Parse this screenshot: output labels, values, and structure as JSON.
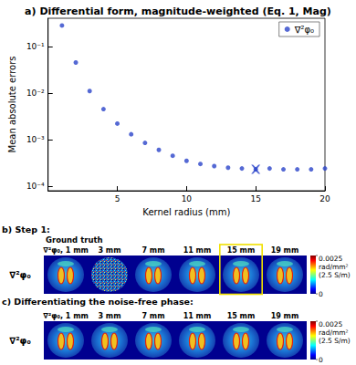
{
  "chart_data": {
    "type": "scatter",
    "title": "a) Differential form, magnitude-weighted (Eq. 1, Mag)",
    "x_label": "Kernel radius (mm)",
    "y_label": "Mean absolute errors",
    "x": [
      1,
      2,
      3,
      4,
      5,
      6,
      7,
      8,
      9,
      10,
      11,
      12,
      13,
      14,
      15,
      16,
      17,
      18,
      19,
      20
    ],
    "series": [
      {
        "name": "∇²φ₀",
        "color": "#2a44c9",
        "marker": "circle",
        "values": [
          0.28,
          0.045,
          0.011,
          0.0045,
          0.0022,
          0.0013,
          0.00085,
          0.0006,
          0.00045,
          0.00035,
          0.0003,
          0.00027,
          0.00025,
          0.00024,
          0.00023,
          0.00024,
          0.00023,
          0.00023,
          0.00023,
          0.00024
        ]
      }
    ],
    "selected": {
      "x": 15,
      "value": 0.00023,
      "marker": "x"
    },
    "xlim": [
      0,
      20
    ],
    "xticks": [
      5,
      10,
      15,
      20
    ],
    "ylim": [
      8e-05,
      0.4
    ],
    "yticks": [
      {
        "value": 0.0001,
        "label": "10⁻⁴"
      },
      {
        "value": 0.001,
        "label": "10⁻³"
      },
      {
        "value": 0.01,
        "label": "10⁻²"
      },
      {
        "value": 0.1,
        "label": "10⁻¹"
      }
    ],
    "log": "y",
    "grid": false,
    "legend": "upper right"
  },
  "panels": [
    {
      "title": "b) Step 1:",
      "note": "Ground truth",
      "row_label": "∇²φ₀",
      "columns": [
        "∇²φ₀, 1 mm",
        "3 mm",
        "7 mm",
        "11 mm",
        "15 mm",
        "19 mm"
      ],
      "highlight": "15 mm",
      "colorbar": {
        "range": [
          0,
          0.0025
        ],
        "ticks": [
          0,
          0.0025
        ],
        "units": "rad/mm²",
        "note": "(2.5 S/m)"
      }
    },
    {
      "title": "c) Differentiating the noise-free phase:",
      "row_label": "∇²φ₀",
      "columns": [
        "∇²φ₀, 1 mm",
        "3 mm",
        "7 mm",
        "11 mm",
        "15 mm",
        "19 mm"
      ],
      "colorbar": {
        "range": [
          0,
          0.0025
        ],
        "ticks": [
          0,
          0.0025
        ],
        "units": "rad/mm²",
        "note": "(2.5 S/m)"
      }
    }
  ]
}
